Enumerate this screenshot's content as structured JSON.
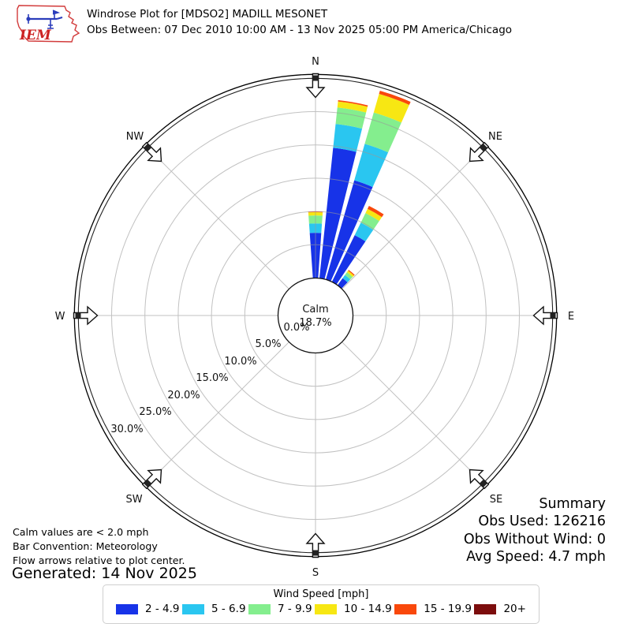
{
  "header": {
    "title_line1": "Windrose Plot for [MDSO2] MADILL MESONET",
    "title_line2": "Obs Between: 07 Dec 2010 10:00 AM - 13 Nov 2025 05:00 PM America/Chicago",
    "logo_text": "IEM"
  },
  "notes": {
    "line1": "Calm values are < 2.0 mph",
    "line2": "Bar Convention: Meteorology",
    "line3": "Flow arrows relative to plot center.",
    "generated": "Generated: 14 Nov 2025"
  },
  "summary": {
    "title": "Summary",
    "obs_used": "Obs Used: 126216",
    "obs_without_wind": "Obs Without Wind: 0",
    "avg_speed": "Avg Speed: 4.7 mph"
  },
  "legend": {
    "title": "Wind Speed [mph]"
  },
  "chart_data": {
    "type": "windrose",
    "units": "percent frequency of observations",
    "calm_label": "Calm",
    "calm_text": "18.7%",
    "calm_percent": 18.7,
    "bar_convention": "Meteorology",
    "direction_bin_width_deg": 8,
    "rings_percent": [
      0,
      5,
      10,
      15,
      20,
      25,
      30
    ],
    "ring_tick_labels": [
      "0.0%",
      "5.0%",
      "10.0%",
      "15.0%",
      "20.0%",
      "25.0%",
      "30.0%"
    ],
    "compass_labels": [
      "N",
      "NE",
      "E",
      "SE",
      "S",
      "SW",
      "W",
      "NW"
    ],
    "speed_bins": [
      {
        "label": "2 - 4.9",
        "color": "#1733e8"
      },
      {
        "label": "5 - 6.9",
        "color": "#2ac6f0"
      },
      {
        "label": "7 - 9.9",
        "color": "#84ee8e"
      },
      {
        "label": "10 - 14.9",
        "color": "#f7e713"
      },
      {
        "label": "15 - 19.9",
        "color": "#f9480b"
      },
      {
        "label": "20+",
        "color": "#7c0d0d"
      }
    ],
    "bars": [
      {
        "direction_deg": 0,
        "segments_percent": [
          6.8,
          1.4,
          1.2,
          0.5,
          0.1,
          0
        ]
      },
      {
        "direction_deg": 10,
        "segments_percent": [
          19.7,
          3.6,
          2.5,
          0.9,
          0.2,
          0
        ]
      },
      {
        "direction_deg": 20,
        "segments_percent": [
          15.5,
          5.7,
          4.9,
          2.9,
          0.5,
          0
        ]
      },
      {
        "direction_deg": 30,
        "segments_percent": [
          7.8,
          2.1,
          1.6,
          0.7,
          0.5,
          0
        ]
      },
      {
        "direction_deg": 40,
        "segments_percent": [
          1.3,
          0.6,
          0.5,
          0.3,
          0.15,
          0
        ]
      }
    ]
  }
}
